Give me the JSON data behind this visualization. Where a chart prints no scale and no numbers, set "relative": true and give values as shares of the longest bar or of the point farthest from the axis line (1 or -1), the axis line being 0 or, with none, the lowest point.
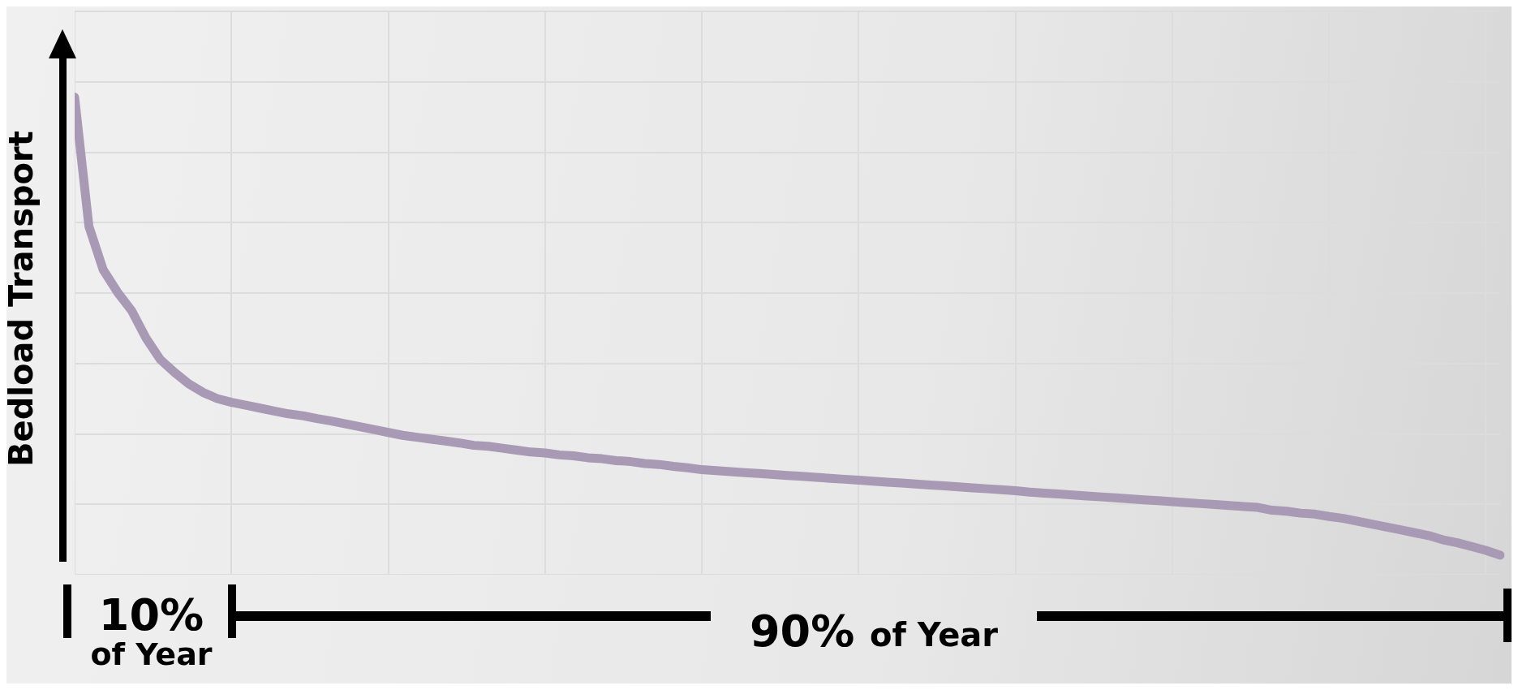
{
  "chart_data": {
    "type": "line",
    "ylabel": "Bedload Transport",
    "relative": true,
    "grid": true,
    "marker": "none",
    "line_style": "solid",
    "categories": [
      null,
      null,
      null,
      null,
      null,
      null,
      null,
      null,
      null,
      null,
      null,
      null,
      null,
      null,
      null,
      null,
      null,
      null,
      null,
      null,
      null,
      null,
      null,
      null,
      null,
      null,
      null,
      null,
      null,
      null,
      null,
      null,
      null,
      null,
      null,
      null,
      null,
      null,
      null,
      null,
      null,
      null,
      null,
      null,
      null,
      null,
      null,
      null,
      null,
      null,
      null,
      null,
      null,
      null,
      null,
      null,
      null,
      null,
      null,
      null,
      null,
      null,
      null,
      null,
      null,
      null,
      null,
      null,
      null,
      null,
      null,
      null,
      null,
      null,
      null,
      null,
      null,
      null,
      null,
      null,
      null,
      null,
      null,
      null,
      null,
      null,
      null,
      null,
      null,
      null,
      null,
      null,
      null,
      null,
      null,
      null,
      null,
      null,
      null,
      null,
      null
    ],
    "series": [
      {
        "color": "#a89ab5",
        "values": [
          1.0,
          0.73,
          0.639,
          0.592,
          0.553,
          0.496,
          0.451,
          0.424,
          0.4,
          0.382,
          0.369,
          0.361,
          0.355,
          0.349,
          0.343,
          0.337,
          0.333,
          0.327,
          0.322,
          0.316,
          0.31,
          0.304,
          0.298,
          0.292,
          0.288,
          0.284,
          0.28,
          0.276,
          0.271,
          0.269,
          0.265,
          0.261,
          0.257,
          0.255,
          0.251,
          0.249,
          0.245,
          0.243,
          0.239,
          0.237,
          0.233,
          0.231,
          0.227,
          0.224,
          0.22,
          0.218,
          0.216,
          0.214,
          0.212,
          0.21,
          0.208,
          0.206,
          0.204,
          0.202,
          0.2,
          0.198,
          0.196,
          0.194,
          0.192,
          0.19,
          0.188,
          0.186,
          0.184,
          0.182,
          0.18,
          0.178,
          0.176,
          0.173,
          0.171,
          0.169,
          0.167,
          0.165,
          0.163,
          0.161,
          0.159,
          0.157,
          0.155,
          0.153,
          0.151,
          0.149,
          0.147,
          0.145,
          0.143,
          0.141,
          0.135,
          0.133,
          0.129,
          0.127,
          0.122,
          0.118,
          0.112,
          0.106,
          0.1,
          0.094,
          0.088,
          0.082,
          0.073,
          0.067,
          0.059,
          0.051,
          0.041
        ]
      }
    ],
    "annotations": [
      "10% of Year",
      "90% of Year"
    ]
  }
}
